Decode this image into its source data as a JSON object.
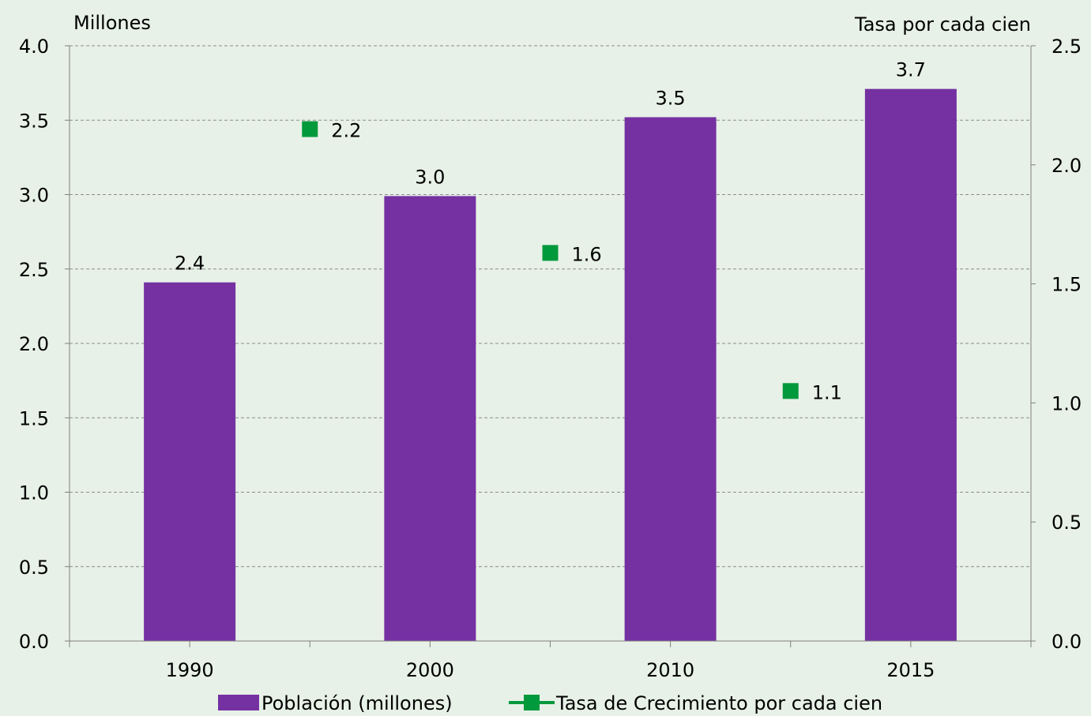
{
  "chart_data": {
    "type": "bar",
    "categories": [
      "1990",
      "2000",
      "2010",
      "2015"
    ],
    "series": [
      {
        "name": "Población (millones)",
        "kind": "bar",
        "axis": "left",
        "color": "#7530a2",
        "values": [
          2.41,
          2.99,
          3.52,
          3.71
        ],
        "labels": [
          "2.4",
          "3.0",
          "3.5",
          "3.7"
        ]
      },
      {
        "name": "Tasa de Crecimiento por cada cien",
        "kind": "marker",
        "axis": "right",
        "color": "#00993c",
        "positions": [
          0.5,
          1.5,
          2.5
        ],
        "values": [
          2.15,
          1.63,
          1.05
        ],
        "labels": [
          "2.2",
          "1.6",
          "1.1"
        ]
      }
    ],
    "left_axis": {
      "title": "Millones",
      "ylim": [
        0,
        4
      ],
      "ticks": [
        "0.0",
        "0.5",
        "1.0",
        "1.5",
        "2.0",
        "2.5",
        "3.0",
        "3.5",
        "4.0"
      ]
    },
    "right_axis": {
      "title": "Tasa por cada cien",
      "ylim": [
        0,
        2.5
      ],
      "ticks": [
        "0.0",
        "0.5",
        "1.0",
        "1.5",
        "2.0",
        "2.5"
      ]
    },
    "grid": true,
    "legend_position": "bottom"
  }
}
